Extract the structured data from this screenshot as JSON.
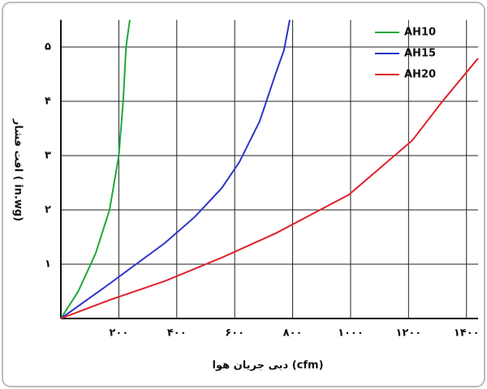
{
  "chart_data": {
    "type": "line",
    "xlabel": "دبی جریان هوا (cfm)",
    "ylabel": "افت فشار ( in.wg)",
    "xlim": [
      0,
      1440
    ],
    "ylim": [
      0,
      5.5
    ],
    "xticks": [
      {
        "value": 200,
        "label": "۲۰۰"
      },
      {
        "value": 400,
        "label": "۴۰۰"
      },
      {
        "value": 600,
        "label": "۶۰۰"
      },
      {
        "value": 800,
        "label": "۸۰۰"
      },
      {
        "value": 1000,
        "label": "۱۰۰۰"
      },
      {
        "value": 1200,
        "label": "۱۲۰۰"
      },
      {
        "value": 1400,
        "label": "۱۴۰۰"
      }
    ],
    "yticks": [
      {
        "value": 1,
        "label": "۱"
      },
      {
        "value": 2,
        "label": "۲"
      },
      {
        "value": 3,
        "label": "۳"
      },
      {
        "value": 4,
        "label": "۴"
      },
      {
        "value": 5,
        "label": "۵"
      }
    ],
    "grid": true,
    "legend": "top-right",
    "series": [
      {
        "name": "AH10",
        "color": "#1fa83a",
        "x": [
          0,
          60,
          120,
          168,
          200,
          215,
          225,
          238
        ],
        "values": [
          0,
          0.5,
          1.2,
          2,
          3,
          4,
          5,
          5.5
        ]
      },
      {
        "name": "AH15",
        "color": "#2b35c8",
        "x": [
          0,
          168,
          359,
          462,
          555,
          616,
          686,
          742,
          770,
          790
        ],
        "values": [
          0,
          0.64,
          1.39,
          1.87,
          2.4,
          2.88,
          3.63,
          4.52,
          4.94,
          5.5
        ]
      },
      {
        "name": "AH20",
        "color": "#e0202a",
        "x": [
          0,
          168,
          359,
          555,
          742,
          994,
          1213,
          1317,
          1440
        ],
        "values": [
          0,
          0.34,
          0.69,
          1.12,
          1.57,
          2.28,
          3.28,
          4.0,
          4.79
        ]
      }
    ]
  }
}
